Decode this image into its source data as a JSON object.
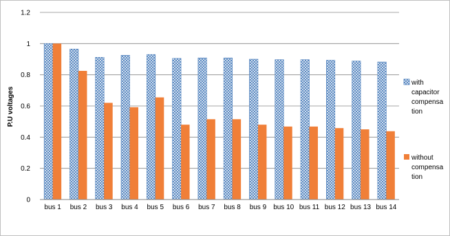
{
  "chart_data": {
    "type": "bar",
    "title": "",
    "xlabel": "",
    "ylabel": "P.U voltages",
    "ylim": [
      0,
      1.2
    ],
    "yticks": [
      "0",
      "0.2",
      "0.4",
      "0.6",
      "0.8",
      "1",
      "1.2"
    ],
    "grid": true,
    "legend_position": "right",
    "categories": [
      "bus 1",
      "bus 2",
      "bus 3",
      "bus 4",
      "bus 5",
      "bus 6",
      "bus 7",
      "bus 8",
      "bus 9",
      "bus 10",
      "bus 11",
      "bus 12",
      "bus 13",
      "bus 14"
    ],
    "series": [
      {
        "name": "with capacitor compensation",
        "legend_lines": [
          "with",
          "capacitor",
          "compensa",
          "tion"
        ],
        "color": "#4f81bd",
        "pattern": "blue-crosshatch",
        "values": [
          1.0,
          0.965,
          0.912,
          0.925,
          0.93,
          0.905,
          0.908,
          0.908,
          0.9,
          0.897,
          0.897,
          0.893,
          0.888,
          0.882
        ]
      },
      {
        "name": "without compensation",
        "legend_lines": [
          "without",
          "compensa",
          "tion"
        ],
        "color": "#f07f38",
        "pattern": "solid",
        "values": [
          1.0,
          0.825,
          0.62,
          0.592,
          0.655,
          0.48,
          0.515,
          0.515,
          0.48,
          0.468,
          0.468,
          0.458,
          0.45,
          0.438
        ]
      }
    ]
  }
}
